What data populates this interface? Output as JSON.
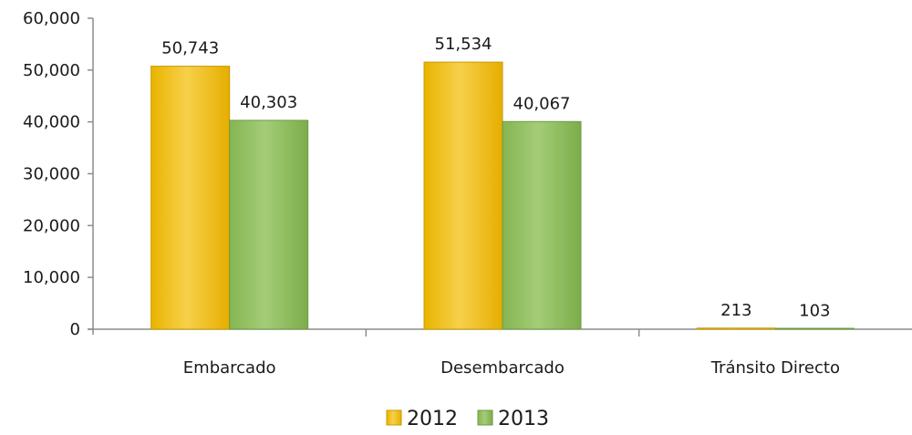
{
  "chart_data": {
    "type": "bar",
    "categories": [
      "Embarcado",
      "Desembarcado",
      "Tránsito Directo"
    ],
    "series": [
      {
        "name": "2012",
        "values": [
          50743,
          51534,
          213
        ],
        "labels": [
          "50,743",
          "51,534",
          "213"
        ],
        "color": "#f0c419"
      },
      {
        "name": "2013",
        "values": [
          40303,
          40067,
          103
        ],
        "labels": [
          "40,303",
          "40,067",
          "103"
        ],
        "color": "#8fbf5f"
      }
    ],
    "y_ticks": [
      "0",
      "10,000",
      "20,000",
      "30,000",
      "40,000",
      "50,000",
      "60,000"
    ],
    "ylim": [
      0,
      60000
    ],
    "grid": false,
    "legend_position": "bottom"
  }
}
